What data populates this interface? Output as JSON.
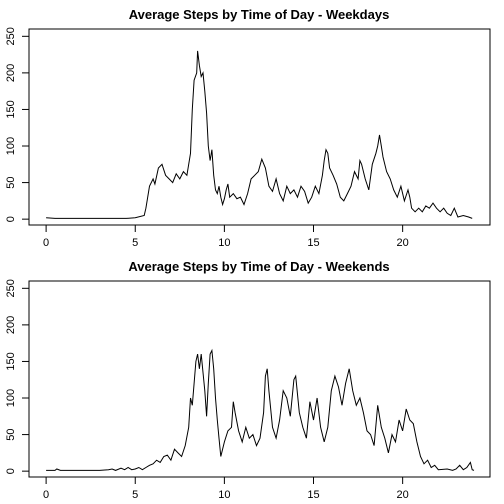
{
  "chart_data": [
    {
      "type": "line",
      "title": "Average Steps by Time of Day - Weekdays",
      "xlabel": "",
      "ylabel": "",
      "xlim": [
        -0.96,
        24.9
      ],
      "ylim": [
        -8,
        260
      ],
      "xticks": [
        0,
        5,
        10,
        15,
        20
      ],
      "yticks": [
        0,
        50,
        100,
        150,
        200,
        250
      ],
      "grid": false,
      "series": [
        {
          "values": [
            [
              0,
              2
            ],
            [
              0.5,
              1
            ],
            [
              1,
              1
            ],
            [
              1.5,
              1
            ],
            [
              2,
              1
            ],
            [
              2.5,
              1
            ],
            [
              3,
              1
            ],
            [
              3.5,
              1
            ],
            [
              4,
              1
            ],
            [
              4.5,
              1
            ],
            [
              5,
              2
            ],
            [
              5.5,
              5
            ],
            [
              5.6,
              15
            ],
            [
              5.8,
              45
            ],
            [
              6,
              55
            ],
            [
              6.1,
              48
            ],
            [
              6.3,
              70
            ],
            [
              6.5,
              75
            ],
            [
              6.7,
              60
            ],
            [
              6.9,
              55
            ],
            [
              7.1,
              50
            ],
            [
              7.3,
              62
            ],
            [
              7.5,
              55
            ],
            [
              7.7,
              65
            ],
            [
              7.9,
              60
            ],
            [
              8.1,
              90
            ],
            [
              8.2,
              150
            ],
            [
              8.3,
              190
            ],
            [
              8.45,
              200
            ],
            [
              8.5,
              230
            ],
            [
              8.6,
              210
            ],
            [
              8.7,
              195
            ],
            [
              8.8,
              200
            ],
            [
              8.9,
              175
            ],
            [
              9.0,
              145
            ],
            [
              9.1,
              100
            ],
            [
              9.2,
              80
            ],
            [
              9.3,
              95
            ],
            [
              9.4,
              60
            ],
            [
              9.5,
              40
            ],
            [
              9.6,
              35
            ],
            [
              9.7,
              45
            ],
            [
              9.8,
              30
            ],
            [
              9.9,
              20
            ],
            [
              10.0,
              28
            ],
            [
              10.1,
              40
            ],
            [
              10.2,
              48
            ],
            [
              10.3,
              30
            ],
            [
              10.5,
              35
            ],
            [
              10.7,
              28
            ],
            [
              10.9,
              30
            ],
            [
              11.1,
              20
            ],
            [
              11.3,
              35
            ],
            [
              11.5,
              55
            ],
            [
              11.7,
              60
            ],
            [
              11.9,
              65
            ],
            [
              12.1,
              82
            ],
            [
              12.3,
              70
            ],
            [
              12.5,
              45
            ],
            [
              12.7,
              38
            ],
            [
              12.9,
              55
            ],
            [
              13.1,
              35
            ],
            [
              13.3,
              25
            ],
            [
              13.5,
              45
            ],
            [
              13.7,
              35
            ],
            [
              13.9,
              40
            ],
            [
              14.1,
              30
            ],
            [
              14.3,
              45
            ],
            [
              14.5,
              38
            ],
            [
              14.7,
              22
            ],
            [
              14.9,
              30
            ],
            [
              15.1,
              45
            ],
            [
              15.3,
              35
            ],
            [
              15.5,
              60
            ],
            [
              15.6,
              80
            ],
            [
              15.7,
              95
            ],
            [
              15.8,
              90
            ],
            [
              15.9,
              70
            ],
            [
              16.1,
              60
            ],
            [
              16.3,
              48
            ],
            [
              16.5,
              30
            ],
            [
              16.7,
              25
            ],
            [
              16.9,
              35
            ],
            [
              17.1,
              45
            ],
            [
              17.3,
              65
            ],
            [
              17.5,
              55
            ],
            [
              17.6,
              80
            ],
            [
              17.7,
              75
            ],
            [
              17.9,
              55
            ],
            [
              18.1,
              40
            ],
            [
              18.3,
              75
            ],
            [
              18.5,
              90
            ],
            [
              18.6,
              100
            ],
            [
              18.7,
              115
            ],
            [
              18.8,
              100
            ],
            [
              18.9,
              85
            ],
            [
              19.1,
              65
            ],
            [
              19.3,
              55
            ],
            [
              19.5,
              40
            ],
            [
              19.7,
              30
            ],
            [
              19.9,
              45
            ],
            [
              20.1,
              25
            ],
            [
              20.3,
              40
            ],
            [
              20.4,
              30
            ],
            [
              20.5,
              15
            ],
            [
              20.7,
              10
            ],
            [
              20.9,
              15
            ],
            [
              21.1,
              10
            ],
            [
              21.3,
              18
            ],
            [
              21.5,
              15
            ],
            [
              21.7,
              22
            ],
            [
              21.9,
              15
            ],
            [
              22.1,
              10
            ],
            [
              22.3,
              15
            ],
            [
              22.5,
              8
            ],
            [
              22.7,
              5
            ],
            [
              22.9,
              15
            ],
            [
              23.1,
              3
            ],
            [
              23.4,
              5
            ],
            [
              23.7,
              3
            ],
            [
              23.9,
              1
            ]
          ]
        }
      ]
    },
    {
      "type": "line",
      "title": "Average Steps by Time of Day - Weekends",
      "xlabel": "",
      "ylabel": "",
      "xlim": [
        -0.96,
        24.9
      ],
      "ylim": [
        -8,
        260
      ],
      "xticks": [
        0,
        5,
        10,
        15,
        20
      ],
      "yticks": [
        0,
        50,
        100,
        150,
        200,
        250
      ],
      "grid": false,
      "series": [
        {
          "values": [
            [
              0,
              1
            ],
            [
              0.5,
              1
            ],
            [
              0.6,
              3
            ],
            [
              0.8,
              1
            ],
            [
              1,
              1
            ],
            [
              1.5,
              1
            ],
            [
              2,
              1
            ],
            [
              2.5,
              1
            ],
            [
              3,
              1
            ],
            [
              3.5,
              2
            ],
            [
              3.7,
              3
            ],
            [
              3.9,
              1
            ],
            [
              4.2,
              4
            ],
            [
              4.4,
              2
            ],
            [
              4.6,
              5
            ],
            [
              4.8,
              2
            ],
            [
              5.0,
              3
            ],
            [
              5.2,
              5
            ],
            [
              5.4,
              2
            ],
            [
              5.6,
              5
            ],
            [
              5.8,
              8
            ],
            [
              6.0,
              10
            ],
            [
              6.2,
              15
            ],
            [
              6.4,
              12
            ],
            [
              6.6,
              20
            ],
            [
              6.8,
              22
            ],
            [
              7.0,
              15
            ],
            [
              7.2,
              30
            ],
            [
              7.4,
              25
            ],
            [
              7.6,
              20
            ],
            [
              7.8,
              35
            ],
            [
              8.0,
              60
            ],
            [
              8.1,
              100
            ],
            [
              8.2,
              90
            ],
            [
              8.3,
              120
            ],
            [
              8.4,
              150
            ],
            [
              8.5,
              160
            ],
            [
              8.6,
              140
            ],
            [
              8.7,
              160
            ],
            [
              8.8,
              135
            ],
            [
              8.9,
              110
            ],
            [
              9.0,
              75
            ],
            [
              9.1,
              120
            ],
            [
              9.2,
              160
            ],
            [
              9.3,
              165
            ],
            [
              9.4,
              140
            ],
            [
              9.5,
              100
            ],
            [
              9.6,
              70
            ],
            [
              9.7,
              45
            ],
            [
              9.8,
              20
            ],
            [
              10.0,
              40
            ],
            [
              10.2,
              55
            ],
            [
              10.4,
              60
            ],
            [
              10.5,
              95
            ],
            [
              10.6,
              80
            ],
            [
              10.8,
              55
            ],
            [
              11.0,
              40
            ],
            [
              11.2,
              60
            ],
            [
              11.4,
              45
            ],
            [
              11.6,
              50
            ],
            [
              11.8,
              35
            ],
            [
              12.0,
              45
            ],
            [
              12.2,
              80
            ],
            [
              12.3,
              130
            ],
            [
              12.4,
              140
            ],
            [
              12.5,
              110
            ],
            [
              12.7,
              60
            ],
            [
              12.9,
              45
            ],
            [
              13.1,
              70
            ],
            [
              13.3,
              110
            ],
            [
              13.5,
              100
            ],
            [
              13.7,
              75
            ],
            [
              13.9,
              125
            ],
            [
              14.0,
              130
            ],
            [
              14.2,
              80
            ],
            [
              14.4,
              60
            ],
            [
              14.6,
              45
            ],
            [
              14.8,
              95
            ],
            [
              15.0,
              70
            ],
            [
              15.2,
              100
            ],
            [
              15.4,
              60
            ],
            [
              15.6,
              40
            ],
            [
              15.8,
              60
            ],
            [
              16.0,
              110
            ],
            [
              16.2,
              130
            ],
            [
              16.4,
              115
            ],
            [
              16.6,
              90
            ],
            [
              16.8,
              120
            ],
            [
              17.0,
              140
            ],
            [
              17.2,
              110
            ],
            [
              17.4,
              90
            ],
            [
              17.6,
              100
            ],
            [
              17.8,
              80
            ],
            [
              18.0,
              55
            ],
            [
              18.2,
              50
            ],
            [
              18.4,
              35
            ],
            [
              18.6,
              90
            ],
            [
              18.8,
              60
            ],
            [
              19.0,
              45
            ],
            [
              19.2,
              25
            ],
            [
              19.4,
              50
            ],
            [
              19.6,
              40
            ],
            [
              19.8,
              70
            ],
            [
              20.0,
              55
            ],
            [
              20.2,
              85
            ],
            [
              20.4,
              70
            ],
            [
              20.6,
              65
            ],
            [
              20.8,
              40
            ],
            [
              21.0,
              20
            ],
            [
              21.2,
              10
            ],
            [
              21.4,
              15
            ],
            [
              21.6,
              5
            ],
            [
              21.8,
              8
            ],
            [
              22.0,
              2
            ],
            [
              22.5,
              3
            ],
            [
              22.8,
              1
            ],
            [
              23.0,
              3
            ],
            [
              23.2,
              8
            ],
            [
              23.4,
              2
            ],
            [
              23.6,
              5
            ],
            [
              23.8,
              12
            ],
            [
              23.9,
              2
            ],
            [
              24.0,
              1
            ]
          ]
        }
      ]
    }
  ]
}
